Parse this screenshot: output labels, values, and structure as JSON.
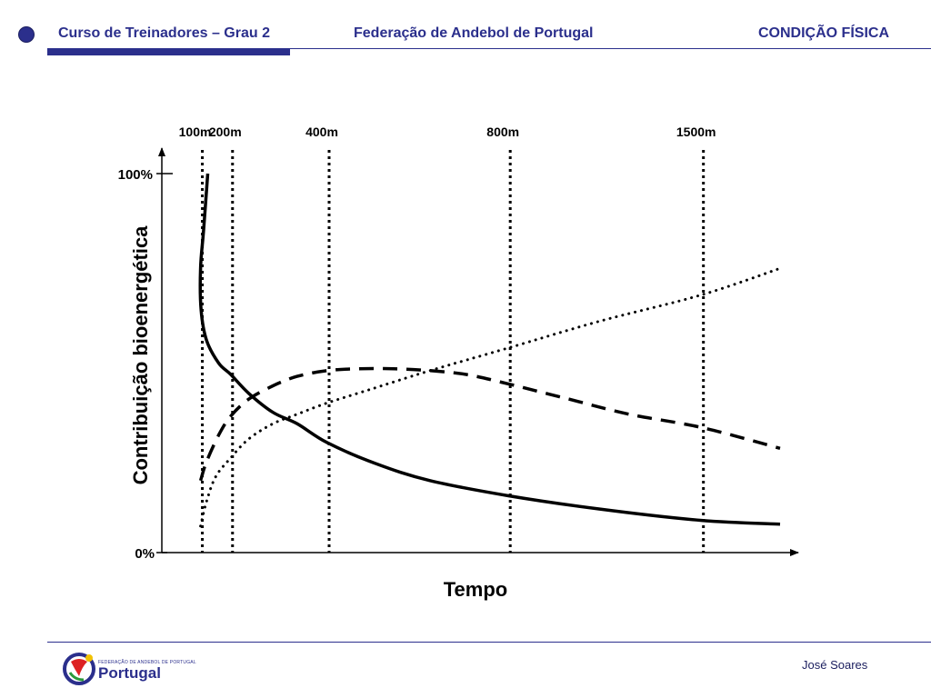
{
  "header": {
    "course": "Curso de Treinadores – Grau 2",
    "federation": "Federação de Andebol de Portugal",
    "topic": "CONDIÇÃO FÍSICA"
  },
  "footer": {
    "logo_small": "FEDERAÇÃO DE ANDEBOL DE PORTUGAL",
    "logo_big": "Portugal",
    "author": "José Soares"
  },
  "colors": {
    "brand": "#2b2f8c",
    "ink": "#000000"
  },
  "chart_data": {
    "type": "line",
    "title": "",
    "xlabel": "Tempo",
    "ylabel": "Contribuição bioenergética",
    "y_tick_labels": [
      "100%",
      "0%"
    ],
    "ylim": [
      0,
      100
    ],
    "xlim": [
      0,
      100
    ],
    "markers": [
      {
        "label": "100m",
        "x": 4
      },
      {
        "label": "200m",
        "x": 9
      },
      {
        "label": "400m",
        "x": 25
      },
      {
        "label": "800m",
        "x": 55
      },
      {
        "label": "1500m",
        "x": 87
      }
    ],
    "series": [
      {
        "name": "solid",
        "style": "solid",
        "x": [
          5.2,
          4.5,
          4,
          4.1,
          5,
          7,
          9,
          12,
          16,
          20,
          25,
          33,
          42,
          55,
          70,
          87,
          100
        ],
        "y": [
          100,
          85,
          75,
          64,
          56,
          50,
          47,
          42,
          37,
          34,
          29,
          23.5,
          19,
          15,
          11.5,
          8.5,
          7.5
        ]
      },
      {
        "name": "dashed",
        "style": "dashed",
        "x": [
          4,
          5,
          7,
          9,
          12,
          16,
          20,
          25,
          30,
          36,
          42,
          48,
          55,
          65,
          75,
          87,
          100
        ],
        "y": [
          19,
          24,
          31,
          36,
          40.5,
          44,
          46.5,
          48,
          48.5,
          48.5,
          48,
          47,
          44.5,
          40.5,
          36.5,
          33,
          27.5
        ]
      },
      {
        "name": "dotted",
        "style": "dotted",
        "x": [
          4,
          5,
          6.5,
          9,
          12,
          16,
          20,
          25,
          32,
          42,
          55,
          70,
          87,
          100
        ],
        "y": [
          7,
          13.5,
          20,
          25,
          30,
          34,
          36.5,
          39.5,
          43,
          48,
          54,
          61,
          68,
          75
        ]
      }
    ]
  }
}
